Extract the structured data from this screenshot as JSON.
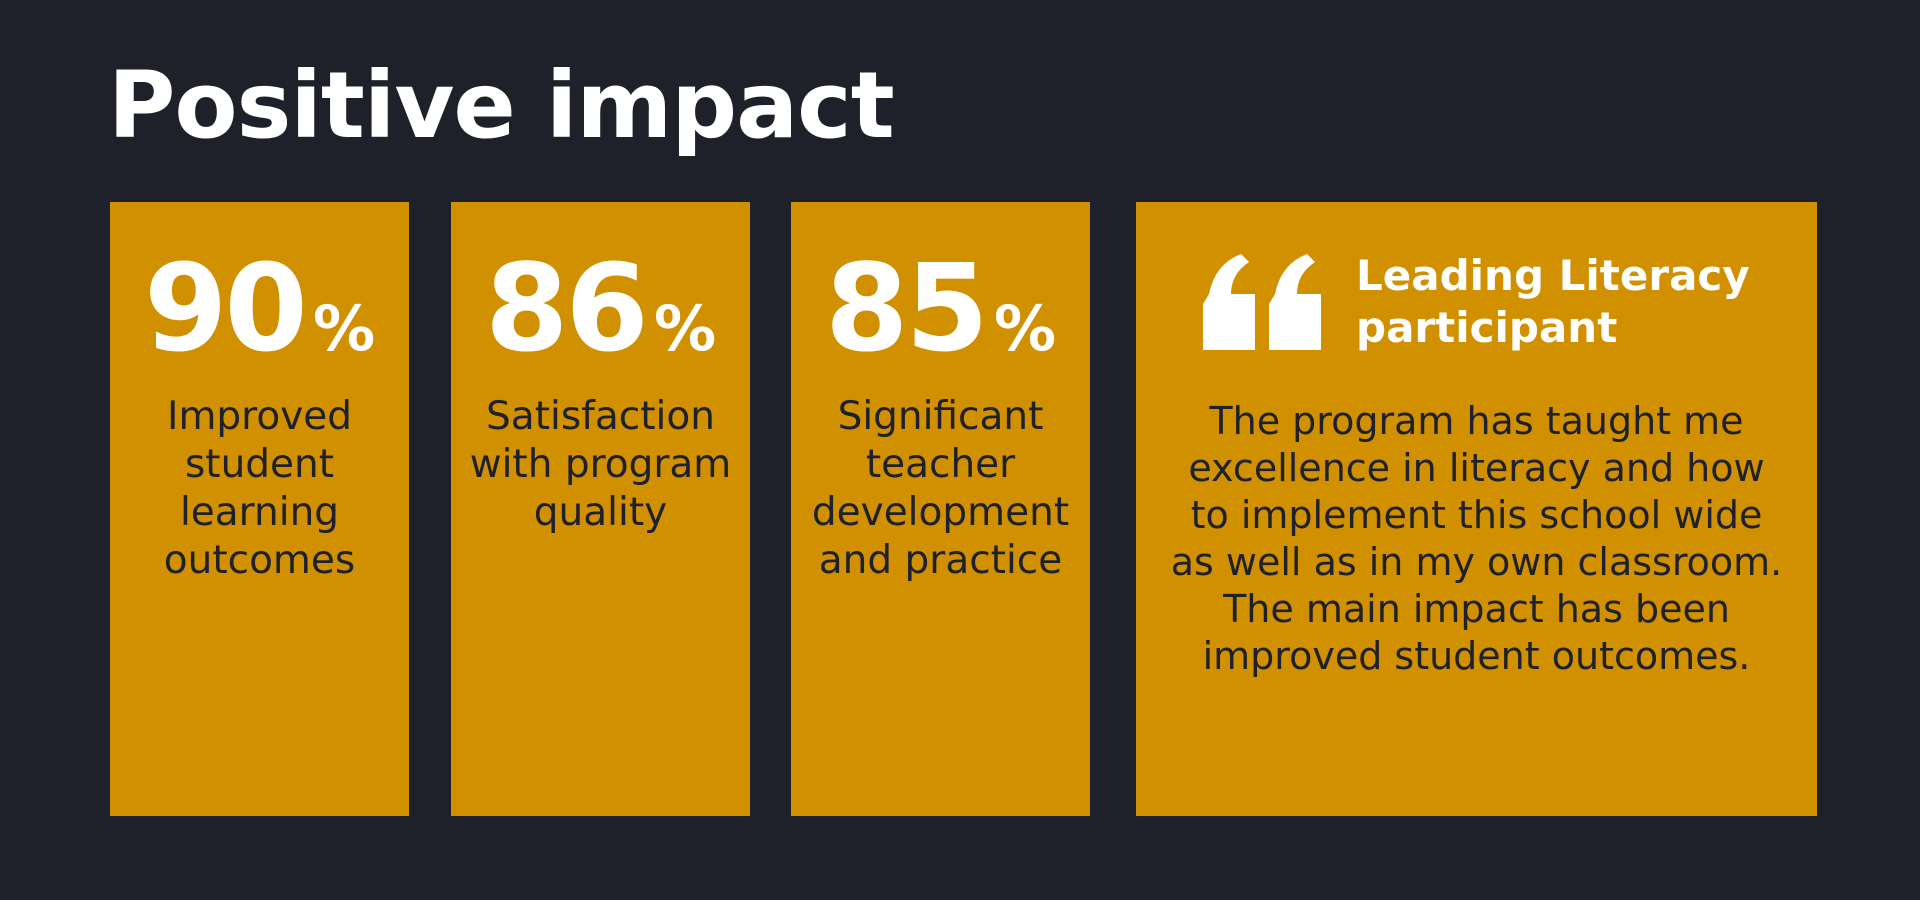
{
  "title": "Positive impact",
  "stats": [
    {
      "value": 90,
      "unit": "%",
      "label": "Improved student learning outcomes"
    },
    {
      "value": 86,
      "unit": "%",
      "label": "Satisfaction with program quality"
    },
    {
      "value": 85,
      "unit": "%",
      "label": "Significant teacher development and practice"
    }
  ],
  "quote": {
    "heading": "Leading Literacy participant",
    "text": "The program has taught me excellence in literacy and how to implement this school wide as well as in my own classroom. The main impact has been improved student outcomes."
  }
}
